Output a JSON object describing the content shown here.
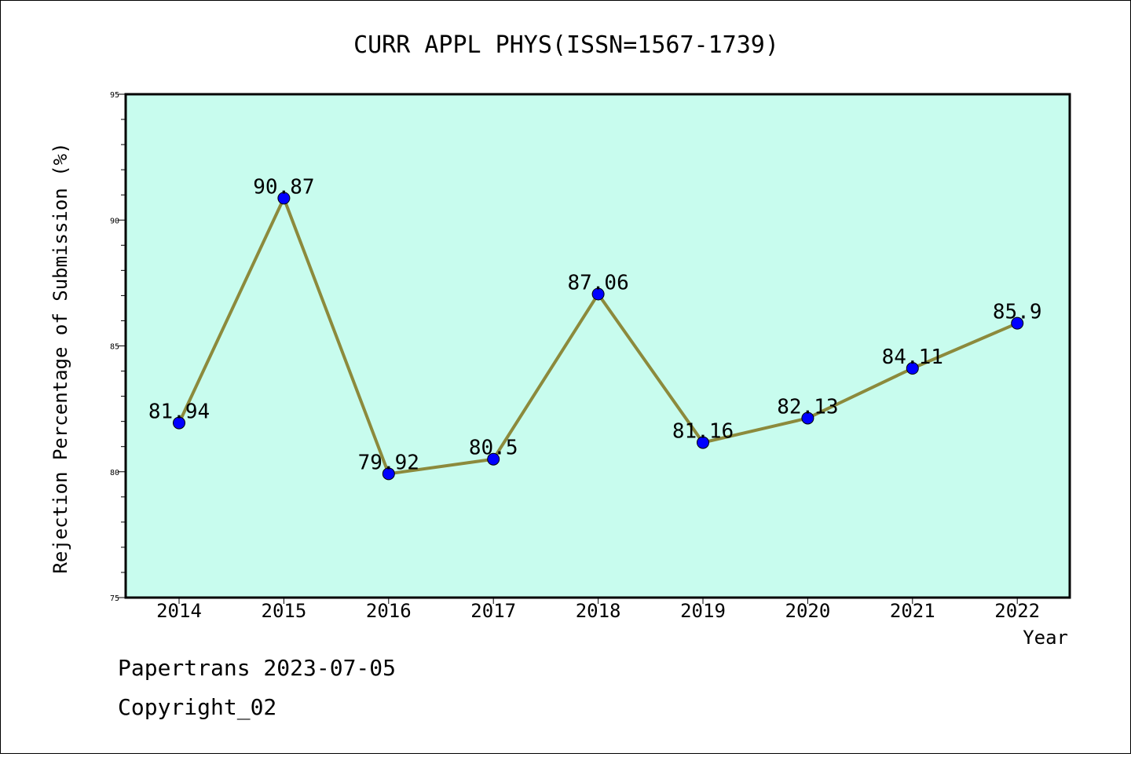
{
  "chart_data": {
    "type": "line",
    "title": "CURR APPL PHYS(ISSN=1567-1739)",
    "xlabel": "Year",
    "ylabel": "Rejection Percentage of Submission (%)",
    "categories": [
      "2014",
      "2015",
      "2016",
      "2017",
      "2018",
      "2019",
      "2020",
      "2021",
      "2022"
    ],
    "series": [
      {
        "values": [
          81.94,
          90.87,
          79.92,
          80.5,
          87.06,
          81.16,
          82.13,
          84.11,
          85.9
        ],
        "data_labels": [
          "81.94",
          "90.87",
          "79.92",
          "80.5",
          "87.06",
          "81.16",
          "82.13",
          "84.11",
          "85.9"
        ]
      }
    ],
    "ylim": [
      75,
      95
    ],
    "yticks": [
      "75",
      "80",
      "85",
      "90",
      "95"
    ],
    "grid": false,
    "colors": {
      "plot_background": "#c8fcee",
      "line": "#8c8a3c",
      "marker": "#0000ff"
    }
  },
  "footer": {
    "source_line": "Papertrans 2023-07-05",
    "copyright_line": "Copyright_02"
  }
}
